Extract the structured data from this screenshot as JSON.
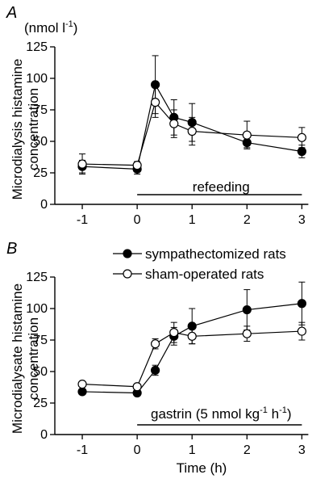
{
  "figure": {
    "unit_label_top": "(nmol l",
    "unit_label_sup": "-1",
    "unit_label_close": ")"
  },
  "chart_data": [
    {
      "type": "line",
      "panel": "A",
      "ylabel_line1": "Microdialysis histamine",
      "ylabel_line2": "concentration",
      "xlabel": "",
      "xlim": [
        -1.5,
        3.2
      ],
      "ylim": [
        0,
        125
      ],
      "x_ticks": [
        "-1",
        "0",
        "1",
        "2",
        "3"
      ],
      "x_tick_values": [
        -1,
        0,
        1,
        2,
        3
      ],
      "y_ticks": [
        "0",
        "25",
        "50",
        "75",
        "100",
        "125"
      ],
      "y_tick_values": [
        0,
        25,
        50,
        75,
        100,
        125
      ],
      "annotation": {
        "text": "refeeding",
        "x_start": 0,
        "x_end": 3
      },
      "series": [
        {
          "style": "filled",
          "color": "#000000",
          "x": [
            -1,
            0,
            0.33,
            0.67,
            1,
            2,
            3
          ],
          "y": [
            30,
            28,
            95,
            69,
            65,
            49,
            42
          ],
          "err": [
            5,
            4,
            23,
            14,
            15,
            4,
            5
          ]
        },
        {
          "style": "open",
          "color": "#000000",
          "x": [
            -1,
            0,
            0.33,
            0.67,
            1,
            2,
            3
          ],
          "y": [
            32,
            31,
            81,
            64,
            58,
            55,
            53
          ],
          "err": [
            8,
            3,
            12,
            11,
            11,
            11,
            8
          ]
        }
      ]
    },
    {
      "type": "line",
      "panel": "B",
      "ylabel_line1": "Microdialysate histamine",
      "ylabel_line2": "concentration",
      "xlabel": "Time (h)",
      "xlim": [
        -1.5,
        3.2
      ],
      "ylim": [
        0,
        125
      ],
      "x_ticks": [
        "-1",
        "0",
        "1",
        "2",
        "3"
      ],
      "x_tick_values": [
        -1,
        0,
        1,
        2,
        3
      ],
      "y_ticks": [
        "0",
        "25",
        "50",
        "75",
        "100",
        "125"
      ],
      "y_tick_values": [
        0,
        25,
        50,
        75,
        100,
        125
      ],
      "annotation": {
        "text_main": "gastrin (5 nmol kg",
        "sup1": "-1",
        "text_mid": " h",
        "sup2": "-1",
        "text_end": ")",
        "x_start": 0,
        "x_end": 3
      },
      "legend": {
        "position": "top-right",
        "entries": [
          {
            "name": "sympathectomized rats",
            "style": "filled"
          },
          {
            "name": "sham-operated rats",
            "style": "open"
          }
        ]
      },
      "series": [
        {
          "name": "sympathectomized rats",
          "style": "filled",
          "color": "#000000",
          "x": [
            -1,
            0,
            0.33,
            0.67,
            1,
            2,
            3
          ],
          "y": [
            34,
            33,
            51,
            78,
            86,
            99,
            104
          ],
          "err": [
            2,
            2,
            4,
            7,
            14,
            16,
            17
          ]
        },
        {
          "name": "sham-operated rats",
          "style": "open",
          "color": "#000000",
          "x": [
            -1,
            0,
            0.33,
            0.67,
            1,
            2,
            3
          ],
          "y": [
            40,
            38,
            72,
            81,
            78,
            80,
            82
          ],
          "err": [
            2,
            2,
            4,
            8,
            6,
            6,
            7
          ]
        }
      ]
    }
  ]
}
